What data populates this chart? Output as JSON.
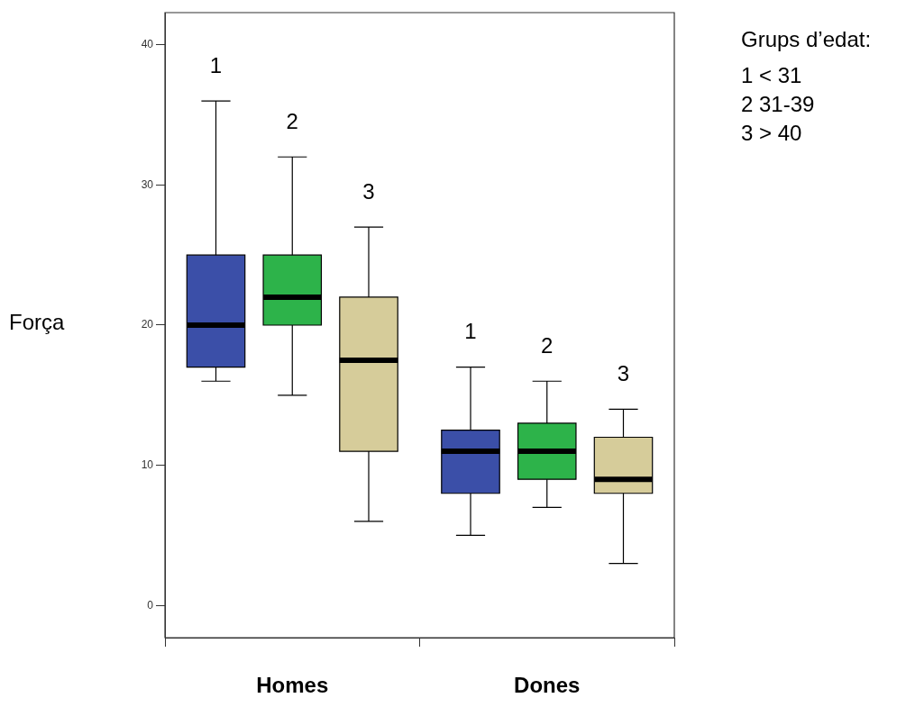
{
  "chart_data": {
    "type": "box",
    "ylabel": "Força",
    "categories": [
      "Homes",
      "Dones"
    ],
    "ylim": [
      -2.3,
      42.3
    ],
    "yticks": [
      0,
      10,
      20,
      30,
      40
    ],
    "grid": false,
    "legend": false,
    "annotations": [
      "Grups d’edat:",
      "1 < 31",
      "2 31-39",
      "3 > 40"
    ],
    "series": [
      {
        "name": "1",
        "color": "#3b4fa8",
        "boxes": [
          {
            "low": 16,
            "q1": 17,
            "median": 20,
            "q3": 25,
            "high": 36
          },
          {
            "low": 5,
            "q1": 8,
            "median": 11,
            "q3": 12.5,
            "high": 17
          }
        ]
      },
      {
        "name": "2",
        "color": "#2db34a",
        "boxes": [
          {
            "low": 15,
            "q1": 20,
            "median": 22,
            "q3": 25,
            "high": 32
          },
          {
            "low": 7,
            "q1": 9,
            "median": 11,
            "q3": 13,
            "high": 16
          }
        ]
      },
      {
        "name": "3",
        "color": "#d6cc9a",
        "boxes": [
          {
            "low": 6,
            "q1": 11,
            "median": 17.5,
            "q3": 22,
            "high": 27
          },
          {
            "low": 3,
            "q1": 8,
            "median": 9,
            "q3": 12,
            "high": 14
          }
        ]
      }
    ]
  }
}
